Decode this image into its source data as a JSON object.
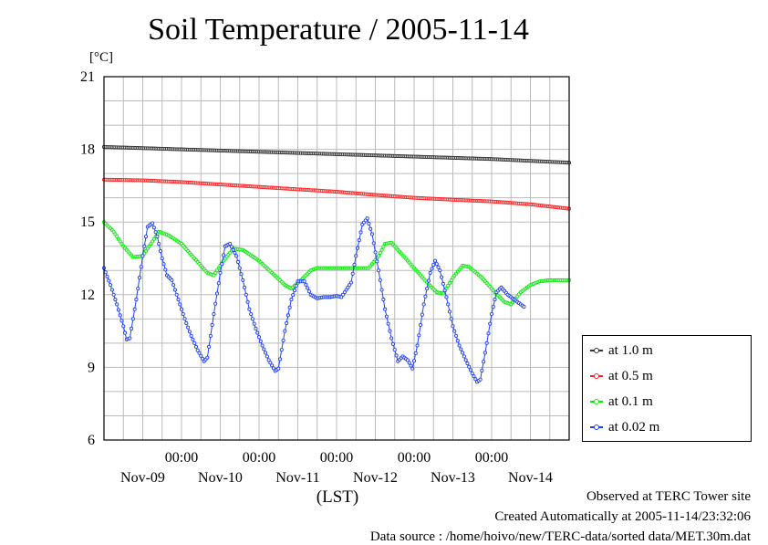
{
  "title": "Soil Temperature / 2005-11-14",
  "ylabel_unit": "[°C]",
  "xlabel": "(LST)",
  "footer": {
    "observed": "Observed at TERC Tower site",
    "created": "Created Automatically at 2005-11-14/23:32:06",
    "source": "Data source : /home/hoivo/new/TERC-data/sorted data/MET.30m.dat"
  },
  "chart_data": {
    "type": "line",
    "title": "Soil Temperature / 2005-11-14",
    "xlabel": "(LST)",
    "ylabel": "[°C]",
    "ylim": [
      6,
      21
    ],
    "yticks": [
      6,
      9,
      12,
      15,
      18,
      21
    ],
    "xlim_hours": [
      0,
      144
    ],
    "xticks": [
      {
        "hour": 24,
        "time": "00:00",
        "date": "Nov-09"
      },
      {
        "hour": 48,
        "time": "00:00",
        "date": "Nov-10"
      },
      {
        "hour": 72,
        "time": "00:00",
        "date": "Nov-11"
      },
      {
        "hour": 96,
        "time": "00:00",
        "date": "Nov-12"
      },
      {
        "hour": 120,
        "time": "00:00",
        "date": "Nov-13"
      },
      {
        "hour": null,
        "time": "",
        "date": "Nov-14"
      }
    ],
    "grid": true,
    "legend_position": "right",
    "series": [
      {
        "name": "at 1.0 m",
        "color": "#333333",
        "points": [
          [
            0,
            18.1
          ],
          [
            24,
            18.0
          ],
          [
            48,
            17.9
          ],
          [
            72,
            17.8
          ],
          [
            96,
            17.7
          ],
          [
            120,
            17.6
          ],
          [
            144,
            17.45
          ]
        ]
      },
      {
        "name": "at 0.5 m",
        "color": "#ff2020",
        "points": [
          [
            0,
            16.75
          ],
          [
            12,
            16.72
          ],
          [
            24,
            16.65
          ],
          [
            36,
            16.55
          ],
          [
            48,
            16.45
          ],
          [
            60,
            16.35
          ],
          [
            72,
            16.25
          ],
          [
            84,
            16.12
          ],
          [
            96,
            16.0
          ],
          [
            108,
            15.92
          ],
          [
            120,
            15.85
          ],
          [
            132,
            15.73
          ],
          [
            144,
            15.55
          ]
        ]
      },
      {
        "name": "at 0.1 m",
        "color": "#00ee00",
        "points": [
          [
            0,
            15.0
          ],
          [
            3,
            14.6
          ],
          [
            6,
            14.0
          ],
          [
            9,
            13.55
          ],
          [
            12,
            13.6
          ],
          [
            15,
            14.2
          ],
          [
            17,
            14.6
          ],
          [
            20,
            14.45
          ],
          [
            24,
            14.1
          ],
          [
            28,
            13.5
          ],
          [
            32,
            12.9
          ],
          [
            34,
            12.8
          ],
          [
            37,
            13.4
          ],
          [
            40,
            13.9
          ],
          [
            43,
            13.85
          ],
          [
            48,
            13.4
          ],
          [
            52,
            12.9
          ],
          [
            56,
            12.4
          ],
          [
            58,
            12.25
          ],
          [
            61,
            12.6
          ],
          [
            64,
            13.0
          ],
          [
            66,
            13.1
          ],
          [
            72,
            13.1
          ],
          [
            78,
            13.1
          ],
          [
            82,
            13.1
          ],
          [
            85,
            13.6
          ],
          [
            87,
            14.1
          ],
          [
            89,
            14.15
          ],
          [
            92,
            13.7
          ],
          [
            96,
            13.1
          ],
          [
            100,
            12.5
          ],
          [
            103,
            12.1
          ],
          [
            105,
            12.05
          ],
          [
            108,
            12.7
          ],
          [
            111,
            13.2
          ],
          [
            113,
            13.15
          ],
          [
            117,
            12.7
          ],
          [
            121,
            12.1
          ],
          [
            124,
            11.7
          ],
          [
            126,
            11.6
          ],
          [
            129,
            12.1
          ],
          [
            132,
            12.4
          ],
          [
            135,
            12.55
          ],
          [
            138,
            12.6
          ],
          [
            144,
            12.6
          ]
        ]
      },
      {
        "name": "at 0.02 m",
        "color": "#2040ff",
        "points": [
          [
            0,
            13.1
          ],
          [
            2,
            12.4
          ],
          [
            4,
            11.6
          ],
          [
            6,
            10.7
          ],
          [
            7,
            10.15
          ],
          [
            8,
            10.2
          ],
          [
            10,
            11.8
          ],
          [
            12,
            13.6
          ],
          [
            13.5,
            14.8
          ],
          [
            15,
            14.95
          ],
          [
            16.5,
            14.4
          ],
          [
            18,
            13.5
          ],
          [
            19.5,
            12.8
          ],
          [
            21,
            12.6
          ],
          [
            23,
            11.8
          ],
          [
            25,
            11.0
          ],
          [
            27,
            10.3
          ],
          [
            29,
            9.7
          ],
          [
            31,
            9.25
          ],
          [
            32,
            9.4
          ],
          [
            34,
            11.2
          ],
          [
            36,
            12.9
          ],
          [
            37.5,
            14.0
          ],
          [
            39,
            14.1
          ],
          [
            41,
            13.6
          ],
          [
            43,
            12.6
          ],
          [
            45,
            11.4
          ],
          [
            47,
            10.6
          ],
          [
            49,
            9.9
          ],
          [
            51,
            9.3
          ],
          [
            53,
            8.85
          ],
          [
            54,
            8.95
          ],
          [
            56,
            10.5
          ],
          [
            58,
            11.8
          ],
          [
            60,
            12.55
          ],
          [
            62,
            12.55
          ],
          [
            64,
            12.0
          ],
          [
            66,
            11.85
          ],
          [
            68,
            11.9
          ],
          [
            70,
            11.9
          ],
          [
            72,
            11.95
          ],
          [
            73.5,
            11.9
          ],
          [
            75,
            12.2
          ],
          [
            76.5,
            12.5
          ],
          [
            78,
            13.6
          ],
          [
            80,
            14.9
          ],
          [
            81.5,
            15.15
          ],
          [
            83,
            14.5
          ],
          [
            85,
            13.0
          ],
          [
            87,
            11.4
          ],
          [
            89,
            10.2
          ],
          [
            91,
            9.25
          ],
          [
            92.5,
            9.45
          ],
          [
            94,
            9.3
          ],
          [
            95.5,
            8.95
          ],
          [
            97,
            9.9
          ],
          [
            99,
            11.6
          ],
          [
            101,
            12.9
          ],
          [
            102.5,
            13.4
          ],
          [
            104,
            13.0
          ],
          [
            106,
            11.9
          ],
          [
            108,
            10.7
          ],
          [
            110,
            9.9
          ],
          [
            112,
            9.3
          ],
          [
            114,
            8.75
          ],
          [
            115.5,
            8.4
          ],
          [
            116.5,
            8.5
          ],
          [
            118,
            9.6
          ],
          [
            120,
            11.2
          ],
          [
            121.5,
            12.1
          ],
          [
            123,
            12.3
          ],
          [
            125,
            12.0
          ],
          [
            127,
            11.8
          ],
          [
            129,
            11.6
          ],
          [
            130,
            11.5
          ]
        ]
      }
    ]
  }
}
